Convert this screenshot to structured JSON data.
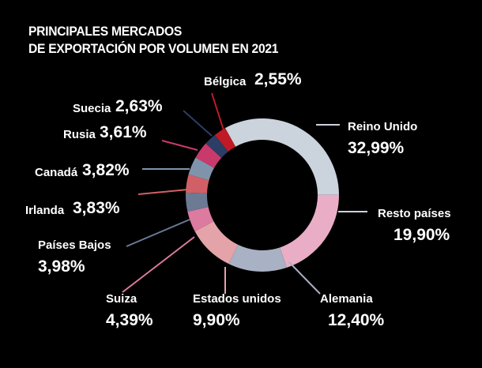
{
  "chart_data": {
    "type": "pie",
    "donut": true,
    "title": [
      "PRINCIPALES MERCADOS",
      "DE EXPORTACIÓN POR VOLUMEN EN 2021"
    ],
    "slices": [
      {
        "name": "Reino Unido",
        "value": 32.99,
        "label": "32,99%",
        "color": "#cbd3dd"
      },
      {
        "name": "Resto países",
        "value": 19.9,
        "label": "19,90%",
        "color": "#e9aec6"
      },
      {
        "name": "Alemania",
        "value": 12.4,
        "label": "12,40%",
        "color": "#a9b1c4"
      },
      {
        "name": "Estados unidos",
        "value": 9.9,
        "label": "9,90%",
        "color": "#e4a3a8"
      },
      {
        "name": "Suiza",
        "value": 4.39,
        "label": "4,39%",
        "color": "#dd7aa0"
      },
      {
        "name": "Países Bajos",
        "value": 3.98,
        "label": "3,98%",
        "color": "#6c7a94"
      },
      {
        "name": "Irlanda",
        "value": 3.83,
        "label": "3,83%",
        "color": "#d06066"
      },
      {
        "name": "Canadá",
        "value": 3.82,
        "label": "3,82%",
        "color": "#7f94ab"
      },
      {
        "name": "Rusia",
        "value": 3.61,
        "label": "3,61%",
        "color": "#c93a6c"
      },
      {
        "name": "Suecia",
        "value": 2.63,
        "label": "2,63%",
        "color": "#2c3d66"
      },
      {
        "name": "Bélgica",
        "value": 2.55,
        "label": "2,55%",
        "color": "#c01a26"
      }
    ]
  }
}
